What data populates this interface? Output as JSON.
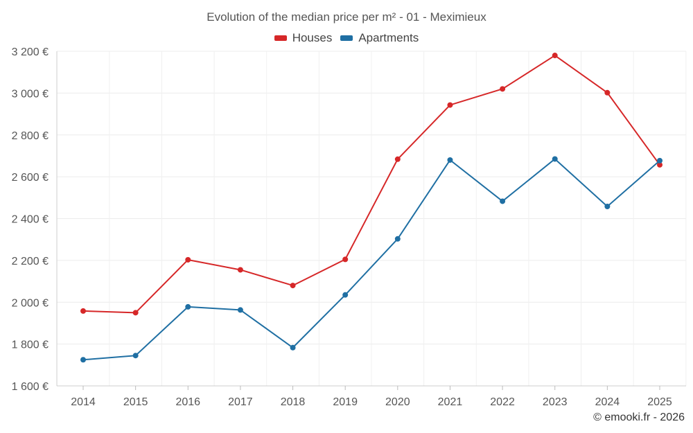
{
  "chart_data": {
    "type": "line",
    "title": "Evolution of the median price per m² - 01 - Meximieux",
    "categories": [
      "2014",
      "2015",
      "2016",
      "2017",
      "2018",
      "2019",
      "2020",
      "2021",
      "2022",
      "2023",
      "2024",
      "2025"
    ],
    "series": [
      {
        "name": "Houses",
        "color": "#d62728",
        "values": [
          1958,
          1950,
          2203,
          2155,
          2080,
          2205,
          2684,
          2943,
          3020,
          3180,
          3002,
          2657
        ]
      },
      {
        "name": "Apartments",
        "color": "#1f6fa3",
        "values": [
          1725,
          1745,
          1978,
          1963,
          1783,
          2035,
          2303,
          2680,
          2483,
          2685,
          2458,
          2677
        ]
      }
    ],
    "yticks": [
      "1 600 €",
      "1 800 €",
      "2 000 €",
      "2 200 €",
      "2 400 €",
      "2 600 €",
      "2 800 €",
      "3 000 €",
      "3 200 €"
    ],
    "ytick_values": [
      1600,
      1800,
      2000,
      2200,
      2400,
      2600,
      2800,
      3000,
      3200
    ],
    "ylim": [
      1600,
      3200
    ],
    "legend_position": "top-center",
    "grid": true,
    "xlabel": "",
    "ylabel": ""
  },
  "legend": {
    "houses_label": "Houses",
    "apartments_label": "Apartments"
  },
  "credit": "© emooki.fr - 2026"
}
